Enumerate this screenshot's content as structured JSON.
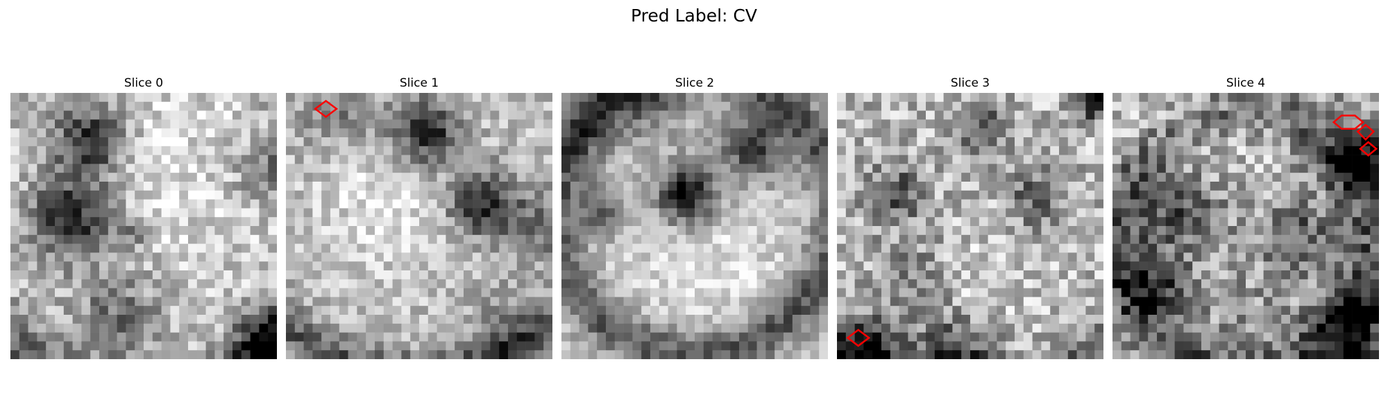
{
  "figure": {
    "title": "Pred Label: CV"
  },
  "colors": {
    "background": "#ffffff",
    "contour": "#ff0000",
    "text": "#000000"
  },
  "image": {
    "colormap": "gray",
    "grid_size": 30
  },
  "slices": [
    {
      "title": "Slice 0",
      "has_contours": false
    },
    {
      "title": "Slice 1",
      "has_contours": true
    },
    {
      "title": "Slice 2",
      "has_contours": false
    },
    {
      "title": "Slice 3",
      "has_contours": true
    },
    {
      "title": "Slice 4",
      "has_contours": true
    }
  ]
}
